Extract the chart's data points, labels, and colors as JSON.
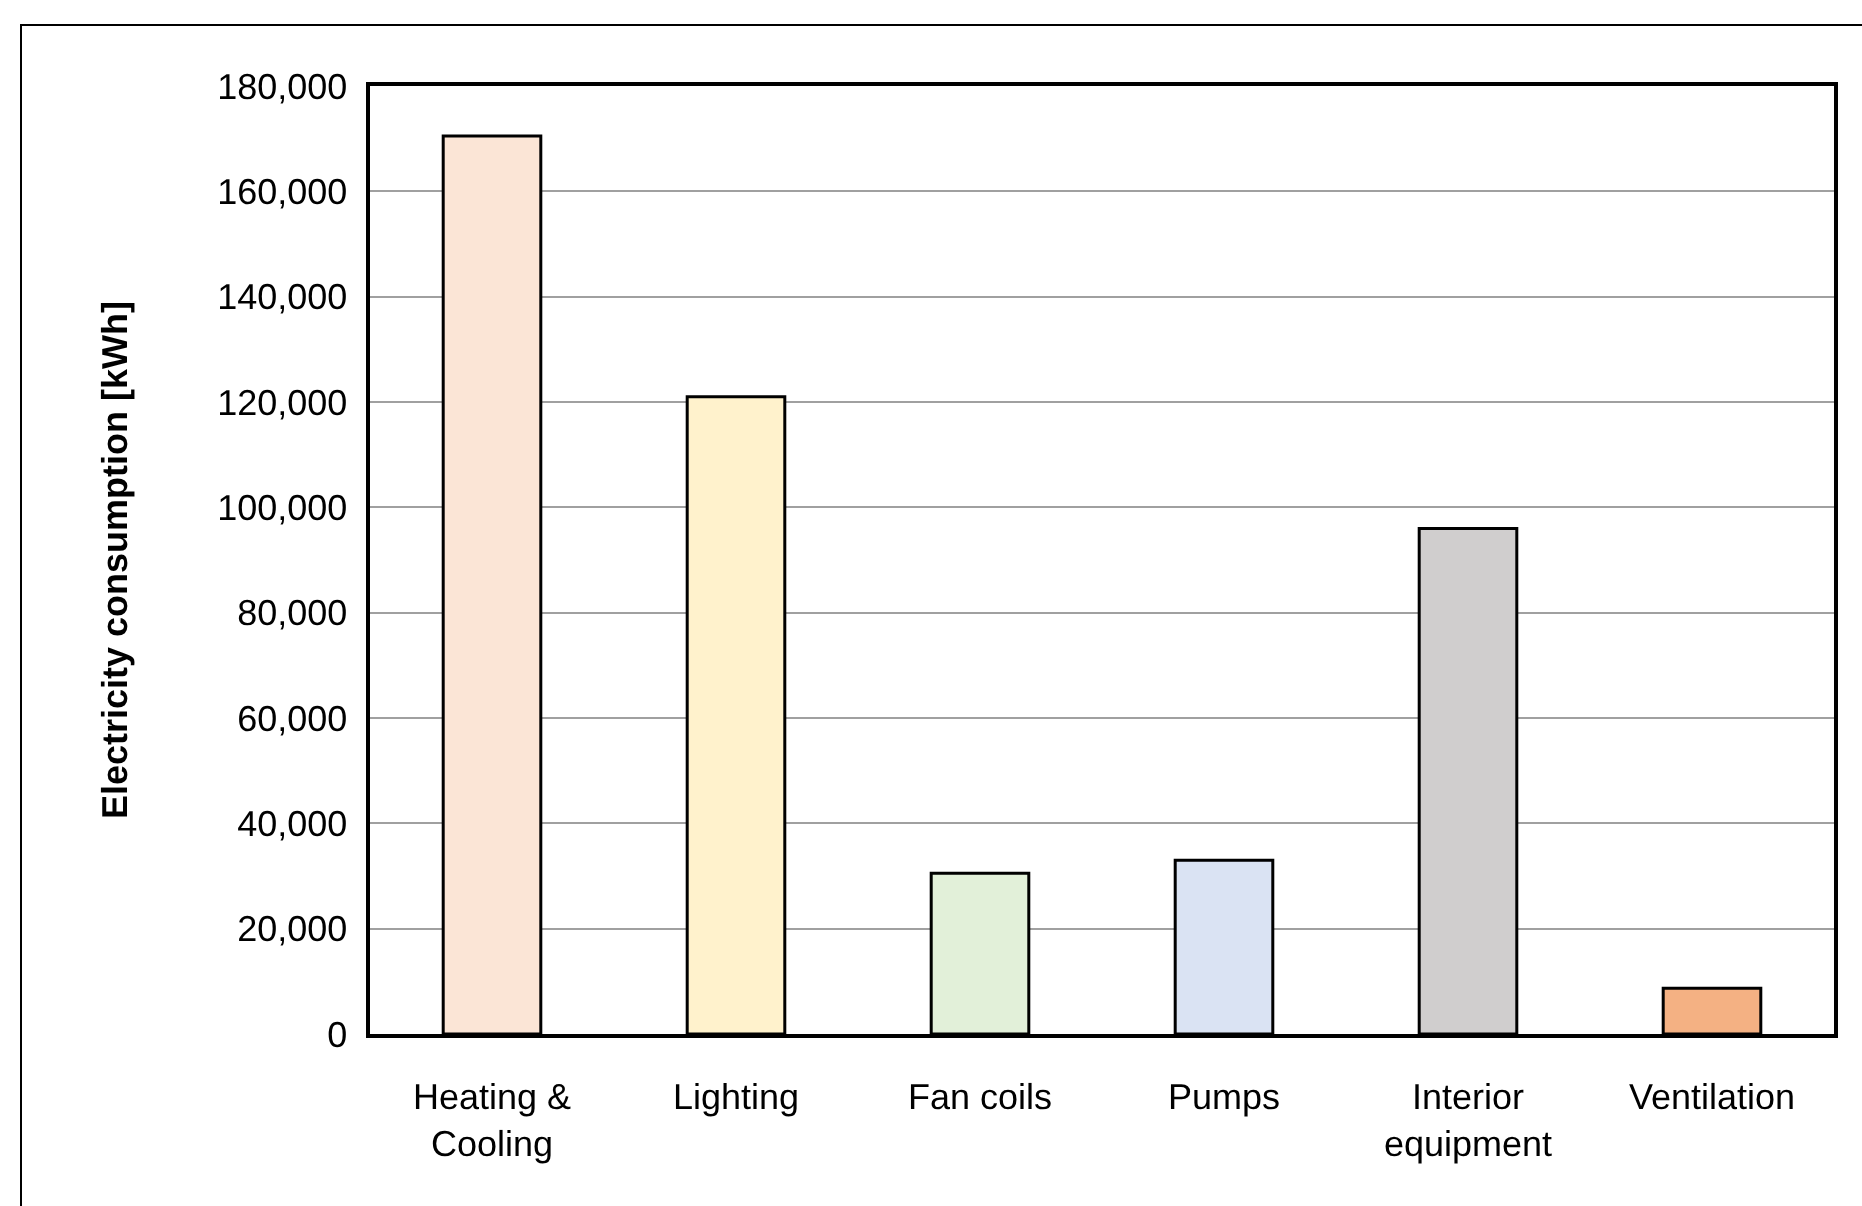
{
  "chart_data": {
    "type": "bar",
    "ylabel": "Electricity consumption [kWh]",
    "categories": [
      "Heating & Cooling",
      "Lighting",
      "Fan coils",
      "Pumps",
      "Interior equipment",
      "Ventilation"
    ],
    "values": [
      170500,
      121000,
      30500,
      33000,
      96000,
      8700
    ],
    "colors": [
      "#fbe5d6",
      "#fff2cc",
      "#e2f0d9",
      "#dae3f3",
      "#d0cece",
      "#f4b183"
    ],
    "ylim": [
      0,
      180000
    ],
    "yticks": [
      0,
      {
        "value": 20000,
        "label": "20,000"
      },
      {
        "value": 40000,
        "label": "40,000"
      },
      {
        "value": 60000,
        "label": "60,000"
      },
      {
        "value": 80000,
        "label": "80,000"
      },
      {
        "value": 100000,
        "label": "100,000"
      },
      {
        "value": 120000,
        "label": "120,000"
      },
      {
        "value": 140000,
        "label": "140,000"
      },
      {
        "value": 160000,
        "label": "160,000"
      },
      {
        "value": 180000,
        "label": "180,000"
      }
    ],
    "grid": "y"
  }
}
